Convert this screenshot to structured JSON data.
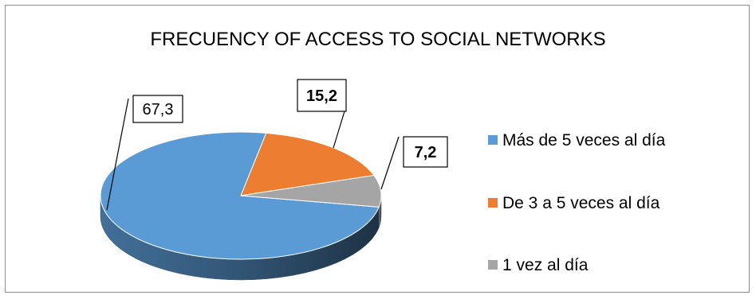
{
  "chart_data": {
    "type": "pie",
    "title": "FRECUENCY OF ACCESS TO SOCIAL NETWORKS",
    "slices": [
      {
        "label": "Más de 5 veces al día",
        "value": 67.3,
        "value_label": "67,3",
        "color": "#5b9bd5",
        "bold": false
      },
      {
        "label": "De 3 a 5 veces al día",
        "value": 15.2,
        "value_label": "15,2",
        "color": "#ed7d31",
        "bold": true
      },
      {
        "label": "1 vez al día",
        "value": 7.2,
        "value_label": "7,2",
        "color": "#a5a5a5",
        "bold": true
      }
    ],
    "legend_position": "right",
    "style": "3d-pie"
  }
}
